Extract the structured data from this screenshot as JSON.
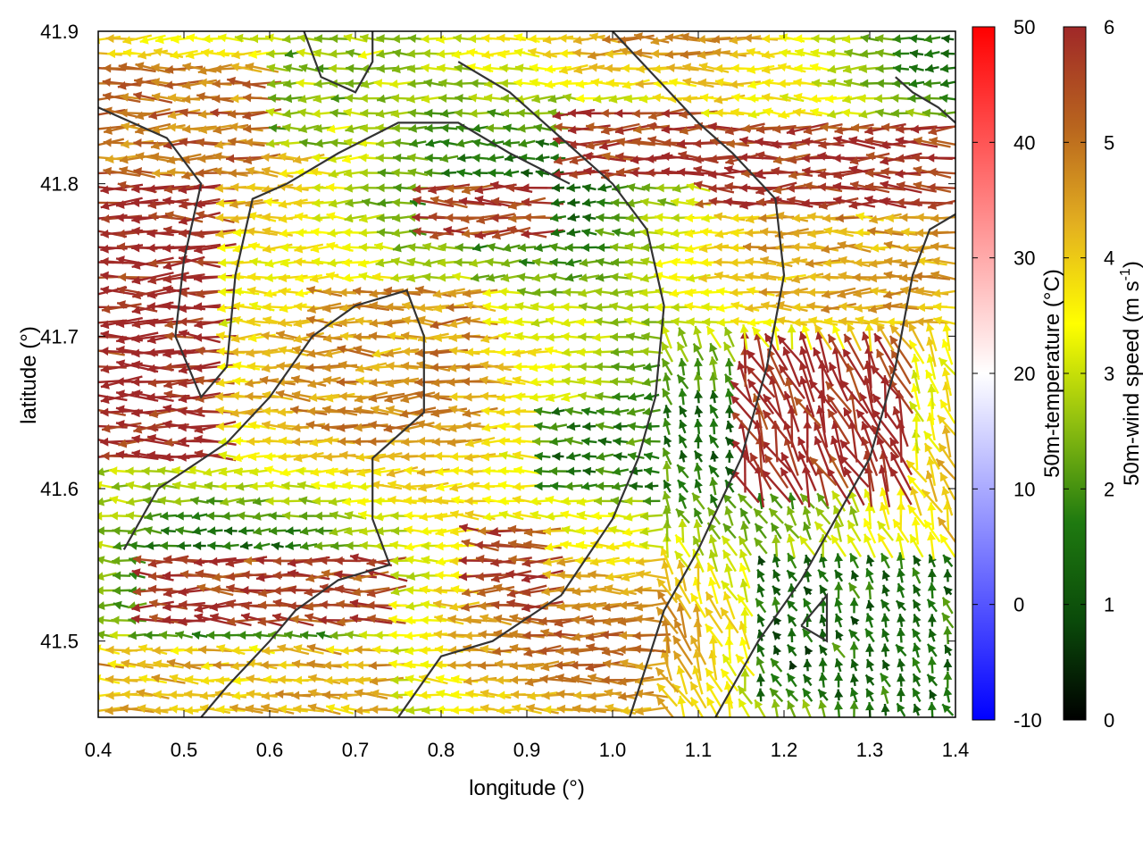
{
  "chart_data": {
    "type": "vector-field",
    "xlabel": "longitude (°)",
    "ylabel": "latitude (°)",
    "xlim": [
      0.4,
      1.4
    ],
    "ylim": [
      41.45,
      41.9
    ],
    "xticks": [
      "0.4",
      "0.5",
      "0.6",
      "0.7",
      "0.8",
      "0.9",
      "1.0",
      "1.1",
      "1.2",
      "1.3",
      "1.4"
    ],
    "yticks": [
      "41.5",
      "41.6",
      "41.7",
      "41.8",
      "41.9"
    ],
    "colorbars": [
      {
        "label": "50m-temperature (°C)",
        "range": [
          -10,
          50
        ],
        "ticks": [
          "-10",
          "0",
          "10",
          "20",
          "30",
          "40",
          "50"
        ],
        "gradient": [
          "#0000ff",
          "#ffffff",
          "#ff0000"
        ]
      },
      {
        "label_main": "50m-wind speed (m s",
        "label_sup": "-1",
        "label_tail": ")",
        "range": [
          0,
          6
        ],
        "ticks": [
          "0",
          "1",
          "2",
          "3",
          "4",
          "5",
          "6"
        ],
        "gradient": [
          "#000000",
          "#0a4a0a",
          "#1f7a10",
          "#8fbf10",
          "#ffff00",
          "#e3b020",
          "#b8641e",
          "#a02828"
        ]
      }
    ],
    "wind_regions": [
      {
        "lon": [
          0.4,
          0.55
        ],
        "lat": [
          41.62,
          41.8
        ],
        "speed": 6.0
      },
      {
        "lon": [
          0.4,
          0.6
        ],
        "lat": [
          41.8,
          41.88
        ],
        "speed": 5.0
      },
      {
        "lon": [
          0.78,
          0.92
        ],
        "lat": [
          41.76,
          41.8
        ],
        "speed": 5.8
      },
      {
        "lon": [
          0.95,
          1.1
        ],
        "lat": [
          41.8,
          41.85
        ],
        "speed": 5.8
      },
      {
        "lon": [
          1.1,
          1.4
        ],
        "lat": [
          41.78,
          41.84
        ],
        "speed": 5.8
      },
      {
        "lon": [
          1.15,
          1.35
        ],
        "lat": [
          41.6,
          41.69
        ],
        "speed": 6.0
      },
      {
        "lon": [
          0.45,
          0.75
        ],
        "lat": [
          41.51,
          41.56
        ],
        "speed": 5.7
      },
      {
        "lon": [
          0.83,
          0.93
        ],
        "lat": [
          41.52,
          41.58
        ],
        "speed": 5.5
      },
      {
        "lon": [
          0.4,
          0.75
        ],
        "lat": [
          41.45,
          41.5
        ],
        "speed": 4.2
      },
      {
        "lon": [
          0.6,
          0.75
        ],
        "lat": [
          41.82,
          41.89
        ],
        "speed": 2.6
      },
      {
        "lon": [
          0.9,
          1.08
        ],
        "lat": [
          41.6,
          41.66
        ],
        "speed": 1.8
      },
      {
        "lon": [
          1.17,
          1.4
        ],
        "lat": [
          41.46,
          41.56
        ],
        "speed": 1.4
      },
      {
        "lon": [
          0.65,
          0.85
        ],
        "lat": [
          41.65,
          41.73
        ],
        "speed": 4.6
      },
      {
        "lon": [
          1.2,
          1.4
        ],
        "lat": [
          41.72,
          41.78
        ],
        "speed": 4.4
      }
    ]
  }
}
